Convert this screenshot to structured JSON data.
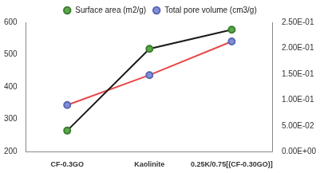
{
  "chart_data": {
    "type": "line",
    "categories": [
      "CF-0.3GO",
      "Kaolinite",
      "0.25K/0.75[(CF-0.30GO)]"
    ],
    "series": [
      {
        "name": "Surface area (m2/g)",
        "color": "#1a1a1a",
        "values": [
          265,
          518,
          577
        ],
        "marker": "circle"
      },
      {
        "name": "Total pore volume (cm3/g)",
        "color": "#e8474a",
        "values": [
          0.09,
          0.148,
          0.213
        ],
        "axis": "y2",
        "marker": "circle"
      }
    ],
    "ylim": [
      200,
      600
    ],
    "yticks": [
      200,
      300,
      400,
      500,
      600
    ],
    "y2lim": [
      0,
      0.25
    ],
    "y2ticks": [
      {
        "value": 0,
        "label": "0.00E+00"
      },
      {
        "value": 0.05,
        "label": "5.00E-02"
      },
      {
        "value": 0.1,
        "label": "1.00E-01"
      },
      {
        "value": 0.15,
        "label": "1.50E-01"
      },
      {
        "value": 0.2,
        "label": "2.00E-01"
      },
      {
        "value": 0.25,
        "label": "2.50E-01"
      }
    ],
    "grid": false,
    "legend": "top"
  }
}
